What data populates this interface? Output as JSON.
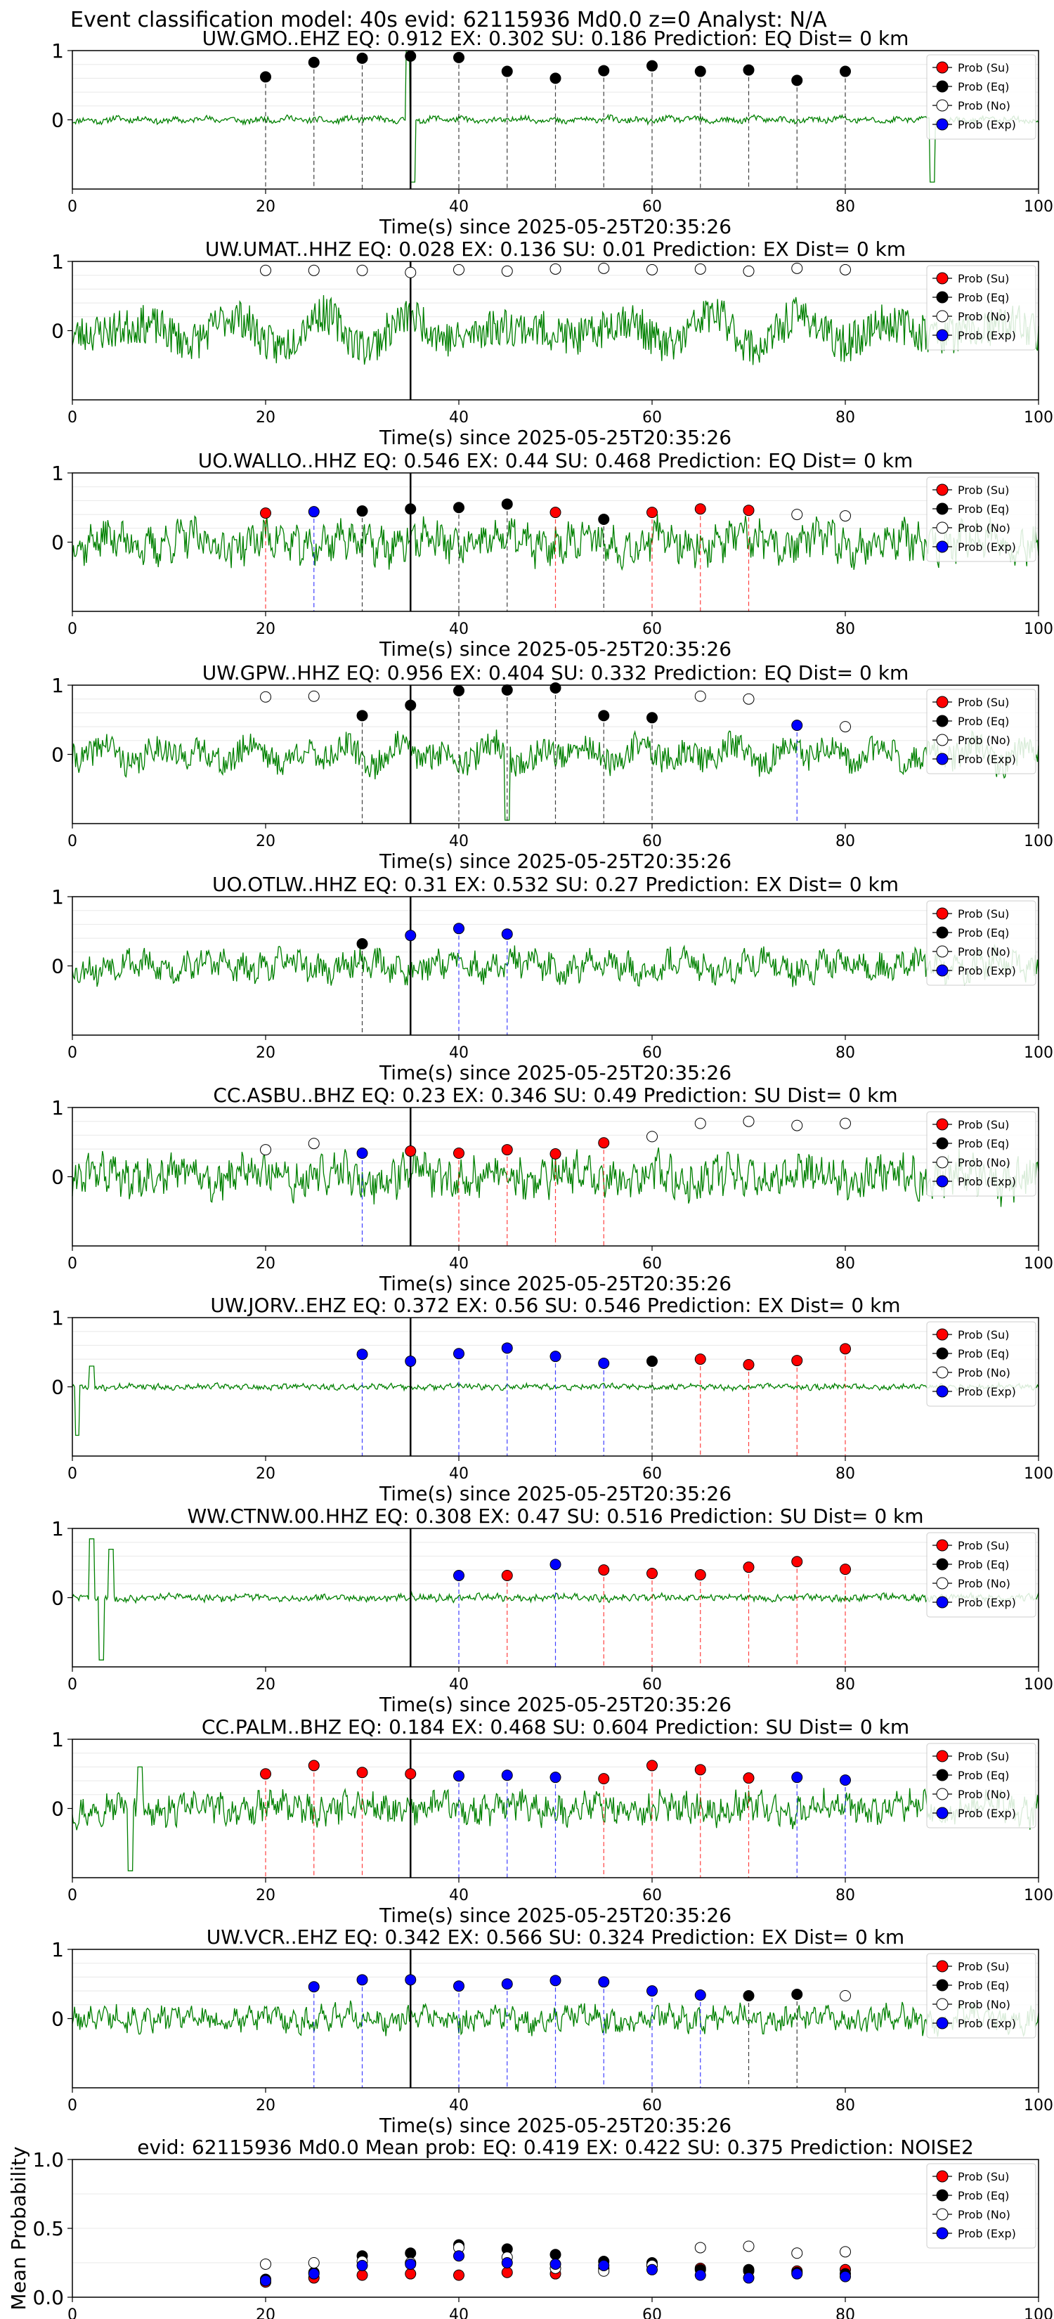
{
  "figure": {
    "suptitle": "Event classification model: 40s evid: 62115936 Md0.0 z=0 Analyst: N/A",
    "xlabel": "Time(s) since 2025-05-25T20:35:26",
    "mean_ylabel": "Mean Probability",
    "legend": [
      "Prob (Su)",
      "Prob (Eq)",
      "Prob (No)",
      "Prob (Exp)"
    ],
    "colors": {
      "trace": "#008000",
      "su": "#ff0000",
      "eq": "#000000",
      "no": "#ffffff",
      "exp": "#0000ff",
      "origin_line": "#000000"
    }
  },
  "chart_data": [
    {
      "type": "line",
      "title": "UW.GMO..EHZ   EQ: 0.912  EX: 0.302  SU: 0.186   Prediction: EQ    Dist= 0 km",
      "xlabel": "Time(s) since 2025-05-25T20:35:26",
      "xlim": [
        0,
        100
      ],
      "ylim": [
        -1,
        1
      ],
      "origin_time": 35,
      "trace": {
        "amp": 0.05,
        "period": 3,
        "seed": 11,
        "spikes": [
          {
            "x": 34.8,
            "a": 1.0
          },
          {
            "x": 35.2,
            "a": -0.9
          },
          {
            "x": 89,
            "a": -0.9
          }
        ]
      },
      "markers": [
        {
          "t": 20,
          "cls": "eq",
          "p": 0.62
        },
        {
          "t": 25,
          "cls": "eq",
          "p": 0.83
        },
        {
          "t": 30,
          "cls": "eq",
          "p": 0.89
        },
        {
          "t": 35,
          "cls": "eq",
          "p": 0.92
        },
        {
          "t": 40,
          "cls": "eq",
          "p": 0.9
        },
        {
          "t": 45,
          "cls": "eq",
          "p": 0.7
        },
        {
          "t": 50,
          "cls": "eq",
          "p": 0.6
        },
        {
          "t": 55,
          "cls": "eq",
          "p": 0.71
        },
        {
          "t": 60,
          "cls": "eq",
          "p": 0.78
        },
        {
          "t": 65,
          "cls": "eq",
          "p": 0.7
        },
        {
          "t": 70,
          "cls": "eq",
          "p": 0.72
        },
        {
          "t": 75,
          "cls": "eq",
          "p": 0.57
        },
        {
          "t": 80,
          "cls": "eq",
          "p": 0.7
        }
      ]
    },
    {
      "type": "line",
      "title": "UW.UMAT..HHZ   EQ: 0.028  EX: 0.136  SU: 0.01   Prediction: EX    Dist= 0 km",
      "xlabel": "Time(s) since 2025-05-25T20:35:26",
      "xlim": [
        0,
        100
      ],
      "ylim": [
        -1,
        1
      ],
      "origin_time": 35,
      "trace": {
        "amp": 0.35,
        "period": 10,
        "seed": 23,
        "spikes": []
      },
      "markers": [
        {
          "t": 20,
          "cls": "no",
          "p": 0.87
        },
        {
          "t": 25,
          "cls": "no",
          "p": 0.87
        },
        {
          "t": 30,
          "cls": "no",
          "p": 0.87
        },
        {
          "t": 35,
          "cls": "no",
          "p": 0.84
        },
        {
          "t": 40,
          "cls": "no",
          "p": 0.88
        },
        {
          "t": 45,
          "cls": "no",
          "p": 0.86
        },
        {
          "t": 50,
          "cls": "no",
          "p": 0.89
        },
        {
          "t": 55,
          "cls": "no",
          "p": 0.9
        },
        {
          "t": 60,
          "cls": "no",
          "p": 0.88
        },
        {
          "t": 65,
          "cls": "no",
          "p": 0.89
        },
        {
          "t": 70,
          "cls": "no",
          "p": 0.86
        },
        {
          "t": 75,
          "cls": "no",
          "p": 0.9
        },
        {
          "t": 80,
          "cls": "no",
          "p": 0.88
        }
      ]
    },
    {
      "type": "line",
      "title": "UO.WALLO..HHZ   EQ: 0.546  EX: 0.44  SU: 0.468   Prediction: EQ    Dist= 0 km",
      "xlabel": "Time(s) since 2025-05-25T20:35:26",
      "xlim": [
        0,
        100
      ],
      "ylim": [
        -1,
        1
      ],
      "origin_time": 35,
      "trace": {
        "amp": 0.28,
        "period": 1.5,
        "seed": 37,
        "spikes": []
      },
      "markers": [
        {
          "t": 20,
          "cls": "su",
          "p": 0.42
        },
        {
          "t": 25,
          "cls": "exp",
          "p": 0.44
        },
        {
          "t": 30,
          "cls": "eq",
          "p": 0.45
        },
        {
          "t": 35,
          "cls": "eq",
          "p": 0.48
        },
        {
          "t": 40,
          "cls": "eq",
          "p": 0.5
        },
        {
          "t": 45,
          "cls": "eq",
          "p": 0.55
        },
        {
          "t": 50,
          "cls": "su",
          "p": 0.43
        },
        {
          "t": 55,
          "cls": "eq",
          "p": 0.33
        },
        {
          "t": 60,
          "cls": "su",
          "p": 0.43
        },
        {
          "t": 65,
          "cls": "su",
          "p": 0.48
        },
        {
          "t": 70,
          "cls": "su",
          "p": 0.46
        },
        {
          "t": 75,
          "cls": "no",
          "p": 0.4
        },
        {
          "t": 80,
          "cls": "no",
          "p": 0.38
        }
      ]
    },
    {
      "type": "line",
      "title": "UW.GPW..HHZ   EQ: 0.956  EX: 0.404  SU: 0.332   Prediction: EQ    Dist= 0 km",
      "xlabel": "Time(s) since 2025-05-25T20:35:26",
      "xlim": [
        0,
        100
      ],
      "ylim": [
        -1,
        1
      ],
      "origin_time": 35,
      "trace": {
        "amp": 0.25,
        "period": 5,
        "seed": 41,
        "spikes": [
          {
            "x": 45,
            "a": -0.95
          }
        ]
      },
      "markers": [
        {
          "t": 20,
          "cls": "no",
          "p": 0.83
        },
        {
          "t": 25,
          "cls": "no",
          "p": 0.84
        },
        {
          "t": 30,
          "cls": "eq",
          "p": 0.56
        },
        {
          "t": 35,
          "cls": "eq",
          "p": 0.71
        },
        {
          "t": 40,
          "cls": "eq",
          "p": 0.92
        },
        {
          "t": 45,
          "cls": "eq",
          "p": 0.93
        },
        {
          "t": 50,
          "cls": "eq",
          "p": 0.96
        },
        {
          "t": 55,
          "cls": "eq",
          "p": 0.56
        },
        {
          "t": 60,
          "cls": "eq",
          "p": 0.53
        },
        {
          "t": 65,
          "cls": "no",
          "p": 0.84
        },
        {
          "t": 70,
          "cls": "no",
          "p": 0.8
        },
        {
          "t": 75,
          "cls": "exp",
          "p": 0.42
        },
        {
          "t": 80,
          "cls": "no",
          "p": 0.4
        }
      ]
    },
    {
      "type": "line",
      "title": "UO.OTLW..HHZ   EQ: 0.31  EX: 0.532  SU: 0.27   Prediction: EX    Dist= 0 km",
      "xlabel": "Time(s) since 2025-05-25T20:35:26",
      "xlim": [
        0,
        100
      ],
      "ylim": [
        -1,
        1
      ],
      "origin_time": 35,
      "trace": {
        "amp": 0.22,
        "period": 2,
        "seed": 53,
        "spikes": []
      },
      "markers": [
        {
          "t": 30,
          "cls": "eq",
          "p": 0.32
        },
        {
          "t": 35,
          "cls": "exp",
          "p": 0.44
        },
        {
          "t": 40,
          "cls": "exp",
          "p": 0.54
        },
        {
          "t": 45,
          "cls": "exp",
          "p": 0.46
        }
      ]
    },
    {
      "type": "line",
      "title": "CC.ASBU..BHZ   EQ: 0.23  EX: 0.346  SU: 0.49   Prediction: SU    Dist= 0 km",
      "xlabel": "Time(s) since 2025-05-25T20:35:26",
      "xlim": [
        0,
        100
      ],
      "ylim": [
        -1,
        1
      ],
      "origin_time": 35,
      "trace": {
        "amp": 0.3,
        "period": 1.2,
        "seed": 61,
        "spikes": []
      },
      "markers": [
        {
          "t": 20,
          "cls": "no",
          "p": 0.39
        },
        {
          "t": 25,
          "cls": "no",
          "p": 0.48
        },
        {
          "t": 30,
          "cls": "exp",
          "p": 0.34
        },
        {
          "t": 35,
          "cls": "su",
          "p": 0.37
        },
        {
          "t": 40,
          "cls": "su",
          "p": 0.34
        },
        {
          "t": 45,
          "cls": "su",
          "p": 0.39
        },
        {
          "t": 50,
          "cls": "su",
          "p": 0.33
        },
        {
          "t": 55,
          "cls": "su",
          "p": 0.49
        },
        {
          "t": 60,
          "cls": "no",
          "p": 0.58
        },
        {
          "t": 65,
          "cls": "no",
          "p": 0.77
        },
        {
          "t": 70,
          "cls": "no",
          "p": 0.8
        },
        {
          "t": 75,
          "cls": "no",
          "p": 0.74
        },
        {
          "t": 80,
          "cls": "no",
          "p": 0.77
        }
      ]
    },
    {
      "type": "line",
      "title": "UW.JORV..EHZ   EQ: 0.372  EX: 0.56  SU: 0.546   Prediction: EX    Dist= 0 km",
      "xlabel": "Time(s) since 2025-05-25T20:35:26",
      "xlim": [
        0,
        100
      ],
      "ylim": [
        -1,
        1
      ],
      "origin_time": 35,
      "trace": {
        "amp": 0.04,
        "period": 1,
        "seed": 71,
        "spikes": [
          {
            "x": 0.5,
            "a": -0.7
          },
          {
            "x": 2,
            "a": 0.3
          }
        ]
      },
      "markers": [
        {
          "t": 30,
          "cls": "exp",
          "p": 0.47
        },
        {
          "t": 35,
          "cls": "exp",
          "p": 0.37
        },
        {
          "t": 40,
          "cls": "exp",
          "p": 0.48
        },
        {
          "t": 45,
          "cls": "exp",
          "p": 0.56
        },
        {
          "t": 50,
          "cls": "exp",
          "p": 0.44
        },
        {
          "t": 55,
          "cls": "exp",
          "p": 0.34
        },
        {
          "t": 60,
          "cls": "eq",
          "p": 0.37
        },
        {
          "t": 65,
          "cls": "su",
          "p": 0.4
        },
        {
          "t": 70,
          "cls": "su",
          "p": 0.32
        },
        {
          "t": 75,
          "cls": "su",
          "p": 0.38
        },
        {
          "t": 80,
          "cls": "su",
          "p": 0.55
        }
      ]
    },
    {
      "type": "line",
      "title": "WW.CTNW.00.HHZ   EQ: 0.308  EX: 0.47  SU: 0.516   Prediction: SU    Dist= 0 km",
      "xlabel": "Time(s) since 2025-05-25T20:35:26",
      "xlim": [
        0,
        100
      ],
      "ylim": [
        -1,
        1
      ],
      "origin_time": 35,
      "trace": {
        "amp": 0.05,
        "period": 1,
        "seed": 83,
        "spikes": [
          {
            "x": 2,
            "a": 0.85
          },
          {
            "x": 3,
            "a": -0.9
          },
          {
            "x": 4,
            "a": 0.7
          }
        ]
      },
      "markers": [
        {
          "t": 40,
          "cls": "exp",
          "p": 0.32
        },
        {
          "t": 45,
          "cls": "su",
          "p": 0.32
        },
        {
          "t": 50,
          "cls": "exp",
          "p": 0.48
        },
        {
          "t": 55,
          "cls": "su",
          "p": 0.4
        },
        {
          "t": 60,
          "cls": "su",
          "p": 0.35
        },
        {
          "t": 65,
          "cls": "su",
          "p": 0.33
        },
        {
          "t": 70,
          "cls": "su",
          "p": 0.44
        },
        {
          "t": 75,
          "cls": "su",
          "p": 0.52
        },
        {
          "t": 80,
          "cls": "su",
          "p": 0.41
        }
      ]
    },
    {
      "type": "line",
      "title": "CC.PALM..BHZ   EQ: 0.184  EX: 0.468  SU: 0.604   Prediction: SU    Dist= 0 km",
      "xlabel": "Time(s) since 2025-05-25T20:35:26",
      "xlim": [
        0,
        100
      ],
      "ylim": [
        -1,
        1
      ],
      "origin_time": 35,
      "trace": {
        "amp": 0.22,
        "period": 1.3,
        "seed": 97,
        "spikes": [
          {
            "x": 6,
            "a": -0.9
          },
          {
            "x": 7,
            "a": 0.6
          }
        ]
      },
      "markers": [
        {
          "t": 20,
          "cls": "su",
          "p": 0.5
        },
        {
          "t": 25,
          "cls": "su",
          "p": 0.62
        },
        {
          "t": 30,
          "cls": "su",
          "p": 0.52
        },
        {
          "t": 35,
          "cls": "su",
          "p": 0.5
        },
        {
          "t": 40,
          "cls": "exp",
          "p": 0.47
        },
        {
          "t": 45,
          "cls": "exp",
          "p": 0.48
        },
        {
          "t": 50,
          "cls": "exp",
          "p": 0.45
        },
        {
          "t": 55,
          "cls": "su",
          "p": 0.43
        },
        {
          "t": 60,
          "cls": "su",
          "p": 0.62
        },
        {
          "t": 65,
          "cls": "su",
          "p": 0.56
        },
        {
          "t": 70,
          "cls": "su",
          "p": 0.44
        },
        {
          "t": 75,
          "cls": "exp",
          "p": 0.45
        },
        {
          "t": 80,
          "cls": "exp",
          "p": 0.41
        }
      ]
    },
    {
      "type": "line",
      "title": "UW.VCR..EHZ   EQ: 0.342  EX: 0.566  SU: 0.324   Prediction: EX    Dist= 0 km",
      "xlabel": "Time(s) since 2025-05-25T20:35:26",
      "xlim": [
        0,
        100
      ],
      "ylim": [
        -1,
        1
      ],
      "origin_time": 35,
      "trace": {
        "amp": 0.18,
        "period": 1.5,
        "seed": 101,
        "spikes": []
      },
      "markers": [
        {
          "t": 25,
          "cls": "exp",
          "p": 0.46
        },
        {
          "t": 30,
          "cls": "exp",
          "p": 0.56
        },
        {
          "t": 35,
          "cls": "exp",
          "p": 0.56
        },
        {
          "t": 40,
          "cls": "exp",
          "p": 0.47
        },
        {
          "t": 45,
          "cls": "exp",
          "p": 0.5
        },
        {
          "t": 50,
          "cls": "exp",
          "p": 0.55
        },
        {
          "t": 55,
          "cls": "exp",
          "p": 0.53
        },
        {
          "t": 60,
          "cls": "exp",
          "p": 0.4
        },
        {
          "t": 65,
          "cls": "exp",
          "p": 0.34
        },
        {
          "t": 70,
          "cls": "eq",
          "p": 0.33
        },
        {
          "t": 75,
          "cls": "eq",
          "p": 0.35
        },
        {
          "t": 80,
          "cls": "no",
          "p": 0.33
        }
      ]
    },
    {
      "type": "scatter",
      "title": "evid: 62115936  Md0.0   Mean prob:   EQ: 0.419  EX: 0.422  SU: 0.375   Prediction: NOISE2",
      "ylabel": "Mean Probability",
      "xlim": [
        0,
        100
      ],
      "ylim": [
        0,
        1
      ],
      "yticks": [
        0.0,
        0.5,
        1.0
      ],
      "series": [
        {
          "name": "Prob (Su)",
          "cls": "su",
          "x": [
            20,
            25,
            30,
            35,
            40,
            45,
            50,
            55,
            60,
            65,
            70,
            75,
            80
          ],
          "y": [
            0.11,
            0.14,
            0.16,
            0.17,
            0.16,
            0.18,
            0.17,
            0.21,
            0.23,
            0.21,
            0.19,
            0.19,
            0.2
          ]
        },
        {
          "name": "Prob (Eq)",
          "cls": "eq",
          "x": [
            20,
            25,
            30,
            35,
            40,
            45,
            50,
            55,
            60,
            65,
            70,
            75,
            80
          ],
          "y": [
            0.13,
            0.18,
            0.3,
            0.32,
            0.38,
            0.35,
            0.31,
            0.26,
            0.25,
            0.2,
            0.2,
            0.18,
            0.17
          ]
        },
        {
          "name": "Prob (No)",
          "cls": "no",
          "x": [
            20,
            25,
            30,
            35,
            40,
            45,
            50,
            55,
            60,
            65,
            70,
            75,
            80
          ],
          "y": [
            0.24,
            0.25,
            0.26,
            0.25,
            0.36,
            0.29,
            0.21,
            0.19,
            0.23,
            0.36,
            0.37,
            0.32,
            0.33
          ]
        },
        {
          "name": "Prob (Exp)",
          "cls": "exp",
          "x": [
            20,
            25,
            30,
            35,
            40,
            45,
            50,
            55,
            60,
            65,
            70,
            75,
            80
          ],
          "y": [
            0.12,
            0.17,
            0.23,
            0.24,
            0.3,
            0.25,
            0.24,
            0.23,
            0.2,
            0.16,
            0.14,
            0.17,
            0.15
          ]
        }
      ]
    }
  ]
}
